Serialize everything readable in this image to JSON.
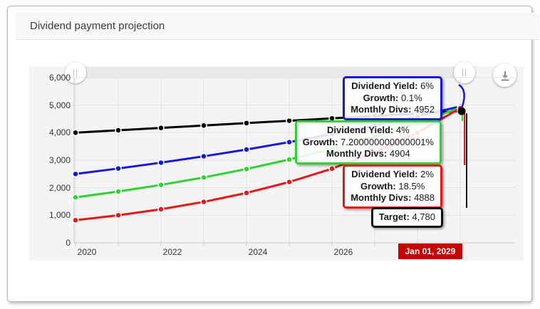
{
  "card": {
    "title": "Dividend payment projection"
  },
  "toolbar": {
    "grip_glyph": "||"
  },
  "chart_data": {
    "type": "line",
    "title": "Dividend payment projection",
    "years": [
      2020,
      2021,
      2022,
      2023,
      2024,
      2025,
      2026,
      2027,
      2028,
      2029
    ],
    "x_tick_labels": [
      "2020",
      "2022",
      "2024",
      "2026"
    ],
    "x_end_label": "Jan 01, 2029",
    "x_end_color": "#c40505",
    "y_tick_labels": [
      "6,000",
      "5,000",
      "4,000",
      "3,000",
      "2,000",
      "1,000",
      "0"
    ],
    "y_ticks": [
      6000,
      5000,
      4000,
      3000,
      2000,
      1000,
      0
    ],
    "ylim": [
      0,
      6000
    ],
    "grid": true,
    "legend": "none",
    "series": [
      {
        "name": "Target",
        "color": "#000000",
        "values": [
          4000,
          4087,
          4173,
          4260,
          4347,
          4433,
          4520,
          4607,
          4693,
          4780
        ]
      },
      {
        "name": "Dividend Yield 6%",
        "color": "#1717dd",
        "values": [
          2500,
          2698,
          2911,
          3141,
          3389,
          3657,
          3946,
          4258,
          4595,
          4952
        ]
      },
      {
        "name": "Dividend Yield 4%",
        "color": "#2fd32f",
        "values": [
          1650,
          1863,
          2103,
          2374,
          2680,
          3026,
          3416,
          3857,
          4354,
          4904
        ]
      },
      {
        "name": "Dividend Yield 2%",
        "color": "#ea1515",
        "values": [
          820,
          1000,
          1219,
          1486,
          1811,
          2208,
          2692,
          3281,
          4000,
          4888
        ]
      }
    ],
    "tooltips": [
      {
        "id": "blue",
        "border": "#1717dd",
        "rows": [
          {
            "label": "Dividend Yield:",
            "value": "6%"
          },
          {
            "label": "Growth:",
            "value": "0.1%"
          },
          {
            "label": "Monthly Divs:",
            "value": "4952"
          }
        ]
      },
      {
        "id": "green",
        "border": "#2fd32f",
        "rows": [
          {
            "label": "Dividend Yield:",
            "value": "4%"
          },
          {
            "label": "Growth:",
            "value": "7.200000000000001%"
          },
          {
            "label": "Monthly Divs:",
            "value": "4904"
          }
        ]
      },
      {
        "id": "red",
        "border": "#ea1515",
        "rows": [
          {
            "label": "Dividend Yield:",
            "value": "2%"
          },
          {
            "label": "Growth:",
            "value": "18.5%"
          },
          {
            "label": "Monthly Divs:",
            "value": "4888"
          }
        ]
      },
      {
        "id": "target",
        "border": "#111111",
        "rows": [
          {
            "label": "Target:",
            "value": "4,780"
          }
        ]
      }
    ]
  }
}
